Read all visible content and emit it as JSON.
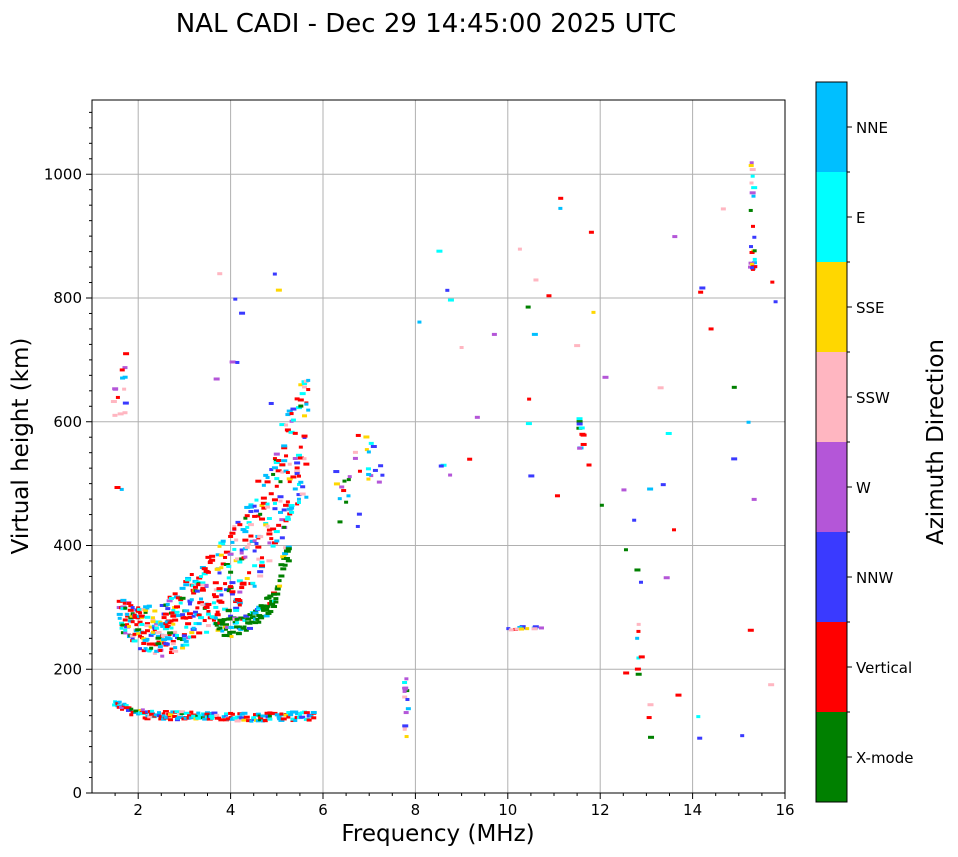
{
  "chart_data": {
    "type": "scatter",
    "title": "NAL CADI - Dec 29 14:45:00 2025 UTC",
    "xlabel": "Frequency (MHz)",
    "ylabel": "Virtual height (km)",
    "xlim": [
      1,
      16
    ],
    "ylim": [
      0,
      1120
    ],
    "xticks": [
      2,
      4,
      6,
      8,
      10,
      12,
      14,
      16
    ],
    "yticks": [
      0,
      200,
      400,
      600,
      800,
      1000
    ],
    "grid": true,
    "colorbar": {
      "label": "Azimuth Direction",
      "categories": [
        {
          "name": "X-mode",
          "color": "#008000"
        },
        {
          "name": "Vertical",
          "color": "#ff0000"
        },
        {
          "name": "NNW",
          "color": "#3a3aff"
        },
        {
          "name": "W",
          "color": "#b456d8"
        },
        {
          "name": "SSW",
          "color": "#ffb6c1"
        },
        {
          "name": "SSE",
          "color": "#ffd700"
        },
        {
          "name": "E",
          "color": "#00ffff"
        },
        {
          "name": "NNE",
          "color": "#00bfff"
        }
      ]
    },
    "series": [
      {
        "name": "E-layer trace (~120-130 km)",
        "x": [
          1.5,
          2.0,
          2.5,
          3.0,
          3.5,
          4.0,
          4.5,
          5.0,
          5.5,
          5.8
        ],
        "y": [
          145,
          128,
          125,
          125,
          125,
          123,
          123,
          124,
          124,
          124
        ]
      },
      {
        "name": "F-layer ordinary trace",
        "x": [
          1.7,
          2.0,
          2.5,
          3.0,
          3.5,
          4.0,
          4.5,
          5.0,
          5.5
        ],
        "y": [
          270,
          245,
          238,
          255,
          285,
          310,
          360,
          430,
          510
        ]
      },
      {
        "name": "F-layer X-mode trace",
        "x": [
          3.8,
          4.2,
          4.6,
          5.0,
          5.2
        ],
        "y": [
          265,
          270,
          285,
          320,
          390
        ]
      },
      {
        "name": "Sporadic echoes",
        "x": [
          6.5,
          6.8,
          7.1,
          7.8,
          9.0,
          10.3,
          11.6,
          12.8,
          13.1,
          14.4,
          14.9,
          15.3,
          15.7
        ],
        "y": [
          470,
          520,
          560,
          130,
          720,
          265,
          590,
          250,
          90,
          750,
          540,
          970,
          175
        ]
      }
    ]
  }
}
